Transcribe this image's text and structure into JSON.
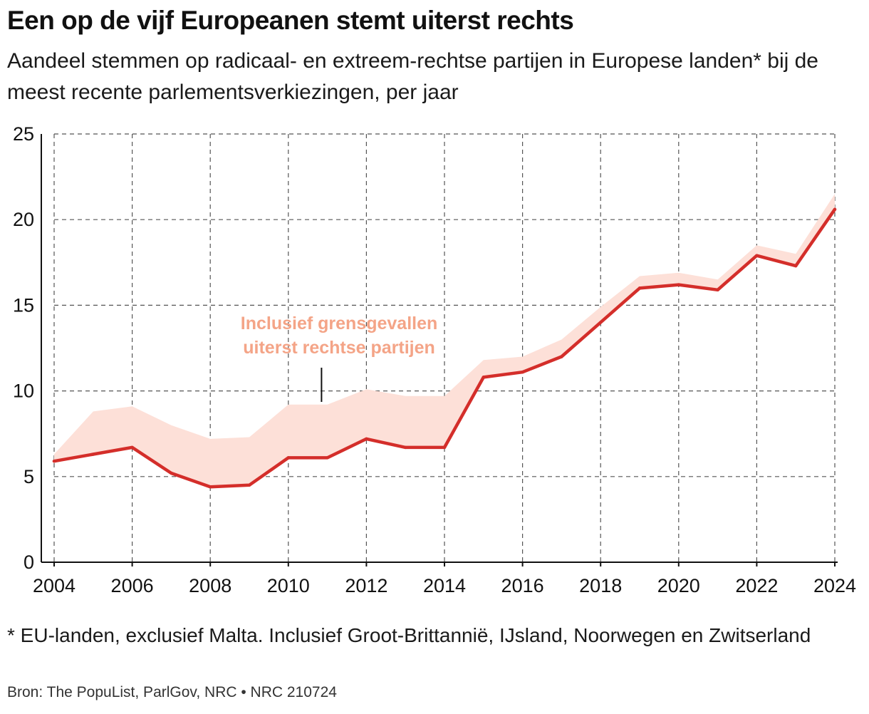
{
  "title": "Een op de vijf Europeanen stemt uiterst rechts",
  "subtitle": "Aandeel stemmen op radicaal- en extreem-rechtse partijen in Europese landen* bij de meest recente parlementsverkiezingen, per jaar",
  "footnote": "* EU-landen, exclusief Malta. Inclusief Groot-Brittannië, IJsland, Noorwegen en Zwitserland",
  "source": "Bron: The PopuList, ParlGov, NRC • NRC 210724",
  "colors": {
    "line": "#d42e2a",
    "band": "#fde0d8",
    "annotation": "#f4a487",
    "grid": "#555555"
  },
  "chart_data": {
    "type": "area",
    "x": [
      2004,
      2005,
      2006,
      2007,
      2008,
      2009,
      2010,
      2011,
      2012,
      2013,
      2014,
      2015,
      2016,
      2017,
      2018,
      2019,
      2020,
      2021,
      2022,
      2023,
      2024
    ],
    "series": [
      {
        "name": "",
        "values": [
          5.9,
          6.3,
          6.7,
          5.2,
          4.4,
          4.5,
          6.1,
          6.1,
          7.2,
          6.7,
          6.7,
          10.8,
          11.1,
          12.0,
          14.0,
          16.0,
          16.2,
          15.9,
          17.9,
          17.3,
          20.6
        ]
      },
      {
        "name": "Inclusief grensgevallen uiterst rechtse partijen",
        "values": [
          6.3,
          8.8,
          9.1,
          8.0,
          7.2,
          7.3,
          9.2,
          9.2,
          10.1,
          9.7,
          9.7,
          11.8,
          12.0,
          13.0,
          14.9,
          16.7,
          16.9,
          16.5,
          18.5,
          18.0,
          21.5
        ]
      }
    ],
    "annotation": {
      "line1": "Inclusief grensgevallen",
      "line2": "uiterst rechtse partijen"
    },
    "x_ticks": [
      2004,
      2006,
      2008,
      2010,
      2012,
      2014,
      2016,
      2018,
      2020,
      2022,
      2024
    ],
    "y_ticks": [
      0,
      5,
      10,
      15,
      20,
      25
    ],
    "xlim": [
      2004,
      2024
    ],
    "ylim": [
      0,
      25
    ],
    "grid": true,
    "xlabel": "",
    "ylabel": ""
  }
}
